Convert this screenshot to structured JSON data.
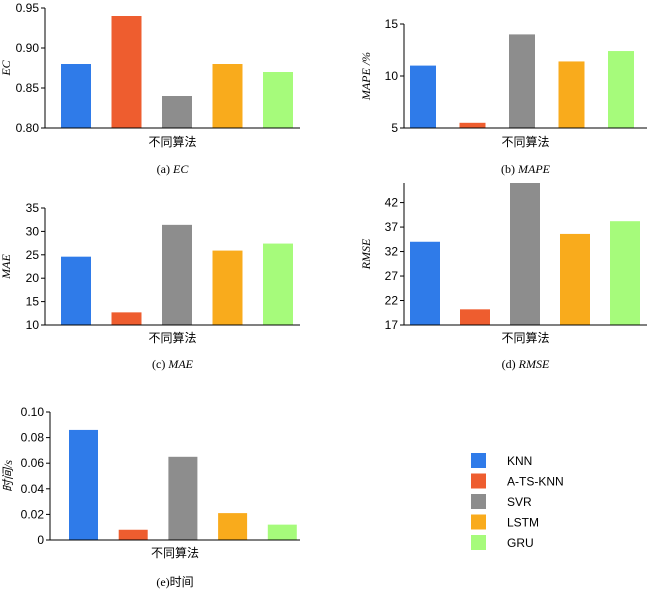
{
  "colors": {
    "KNN": "#2f7be9",
    "A-TS-KNN": "#ee5d2f",
    "SVR": "#8d8d8d",
    "LSTM": "#f9ab1c",
    "GRU": "#a6fb7b"
  },
  "legend": {
    "entries": [
      "KNN",
      "A-TS-KNN",
      "SVR",
      "LSTM",
      "GRU"
    ]
  },
  "chart_data": [
    {
      "type": "bar",
      "caption_prefix": "(a) ",
      "caption_main": "EC",
      "caption_italic": true,
      "xlabel": "不同算法",
      "ylabel": "EC",
      "ylabel_italic": true,
      "categories": [
        "KNN",
        "A-TS-KNN",
        "SVR",
        "LSTM",
        "GRU"
      ],
      "values": [
        0.88,
        0.94,
        0.84,
        0.88,
        0.87
      ],
      "ylim": [
        0.8,
        0.95
      ],
      "yticks": [
        0.8,
        0.85,
        0.9,
        0.95
      ],
      "ytick_labels": [
        "0.80",
        "0.85",
        "0.90",
        "0.95"
      ]
    },
    {
      "type": "bar",
      "caption_prefix": "(b) ",
      "caption_main": "MAPE",
      "caption_italic": true,
      "xlabel": "不同算法",
      "ylabel": "MAPE /%",
      "ylabel_italic": true,
      "categories": [
        "KNN",
        "A-TS-KNN",
        "SVR",
        "LSTM",
        "GRU"
      ],
      "values": [
        11.0,
        5.5,
        14.0,
        11.4,
        12.4
      ],
      "ylim": [
        5,
        15
      ],
      "yticks": [
        5,
        10,
        15
      ],
      "ytick_labels": [
        "5",
        "10",
        "15"
      ]
    },
    {
      "type": "bar",
      "caption_prefix": "(c) ",
      "caption_main": "MAE",
      "caption_italic": true,
      "xlabel": "不同算法",
      "ylabel": "MAE",
      "ylabel_italic": true,
      "categories": [
        "KNN",
        "A-TS-KNN",
        "SVR",
        "LSTM",
        "GRU"
      ],
      "values": [
        24.6,
        12.7,
        31.4,
        25.9,
        27.4
      ],
      "ylim": [
        10,
        35
      ],
      "yticks": [
        10,
        15,
        20,
        25,
        30,
        35
      ],
      "ytick_labels": [
        "10",
        "15",
        "20",
        "25",
        "30",
        "35"
      ]
    },
    {
      "type": "bar",
      "caption_prefix": "(d) ",
      "caption_main": "RMSE",
      "caption_italic": true,
      "xlabel": "不同算法",
      "ylabel": "RMSE",
      "ylabel_italic": true,
      "categories": [
        "KNN",
        "A-TS-KNN",
        "SVR",
        "LSTM",
        "GRU"
      ],
      "values": [
        34.0,
        20.2,
        46.0,
        35.6,
        38.2
      ],
      "ylim": [
        17,
        46
      ],
      "yticks": [
        17,
        22,
        27,
        32,
        37,
        42
      ],
      "ytick_labels": [
        "17",
        "22",
        "27",
        "32",
        "37",
        "42"
      ]
    },
    {
      "type": "bar",
      "caption_prefix": "(e)",
      "caption_main": "时间",
      "caption_italic": false,
      "xlabel": "不同算法",
      "ylabel": "时间/s",
      "ylabel_italic": false,
      "categories": [
        "KNN",
        "A-TS-KNN",
        "SVR",
        "LSTM",
        "GRU"
      ],
      "values": [
        0.086,
        0.008,
        0.065,
        0.021,
        0.012
      ],
      "ylim": [
        0,
        0.1
      ],
      "yticks": [
        0,
        0.02,
        0.04,
        0.06,
        0.08,
        0.1
      ],
      "ytick_labels": [
        "0",
        "0.02",
        "0.04",
        "0.06",
        "0.08",
        "0.10"
      ]
    }
  ]
}
